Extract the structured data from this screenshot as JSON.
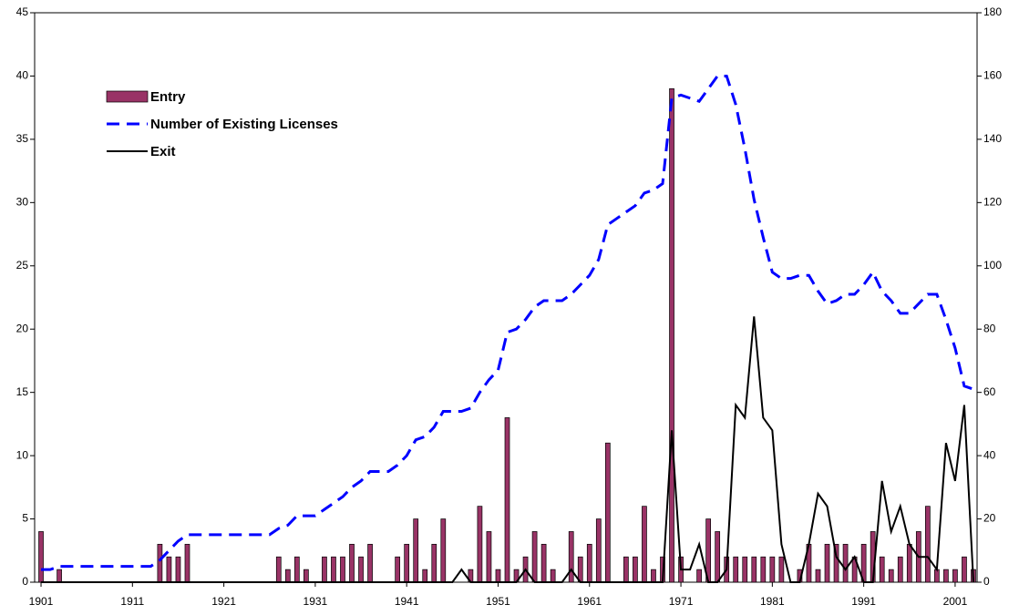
{
  "chart_data": {
    "type": "bar",
    "x": [
      1901,
      1902,
      1903,
      1904,
      1905,
      1906,
      1907,
      1908,
      1909,
      1910,
      1911,
      1912,
      1913,
      1914,
      1915,
      1916,
      1917,
      1918,
      1919,
      1920,
      1921,
      1922,
      1923,
      1924,
      1925,
      1926,
      1927,
      1928,
      1929,
      1930,
      1931,
      1932,
      1933,
      1934,
      1935,
      1936,
      1937,
      1938,
      1939,
      1940,
      1941,
      1942,
      1943,
      1944,
      1945,
      1946,
      1947,
      1948,
      1949,
      1950,
      1951,
      1952,
      1953,
      1954,
      1955,
      1956,
      1957,
      1958,
      1959,
      1960,
      1961,
      1962,
      1963,
      1964,
      1965,
      1966,
      1967,
      1968,
      1969,
      1970,
      1971,
      1972,
      1973,
      1974,
      1975,
      1976,
      1977,
      1978,
      1979,
      1980,
      1981,
      1982,
      1983,
      1984,
      1985,
      1986,
      1987,
      1988,
      1989,
      1990,
      1991,
      1992,
      1993,
      1994,
      1995,
      1996,
      1997,
      1998,
      1999,
      2000,
      2001,
      2002,
      2003
    ],
    "series": [
      {
        "name": "Entry",
        "type": "bar",
        "color": "#993366",
        "values": [
          4,
          0,
          1,
          0,
          0,
          0,
          0,
          0,
          0,
          0,
          0,
          0,
          0,
          3,
          2,
          2,
          3,
          0,
          0,
          0,
          0,
          0,
          0,
          0,
          0,
          0,
          2,
          1,
          2,
          1,
          0,
          2,
          2,
          2,
          3,
          2,
          3,
          0,
          0,
          2,
          3,
          5,
          1,
          3,
          5,
          0,
          0,
          1,
          6,
          4,
          1,
          13,
          1,
          2,
          4,
          3,
          1,
          0,
          4,
          2,
          3,
          5,
          11,
          0,
          2,
          2,
          6,
          1,
          2,
          39,
          2,
          0,
          1,
          5,
          4,
          2,
          2,
          2,
          2,
          2,
          2,
          2,
          0,
          1,
          3,
          1,
          3,
          3,
          3,
          2,
          3,
          4,
          2,
          1,
          2,
          3,
          4,
          6,
          1,
          1,
          1,
          2,
          1
        ]
      },
      {
        "name": "Number of Existing Licenses",
        "type": "line",
        "style": "dashed",
        "axis": "y2",
        "color": "#0000ff",
        "values": [
          4,
          4,
          5,
          5,
          5,
          5,
          5,
          5,
          5,
          5,
          5,
          5,
          5,
          7,
          10,
          13,
          15,
          15,
          15,
          15,
          15,
          15,
          15,
          15,
          15,
          15,
          17,
          18,
          21,
          21,
          21,
          23,
          25,
          27,
          30,
          32,
          35,
          35,
          35,
          37,
          40,
          45,
          46,
          49,
          54,
          54,
          54,
          55,
          60,
          64,
          67,
          79,
          80,
          83,
          87,
          89,
          89,
          89,
          91,
          94,
          97,
          102,
          113,
          115,
          117,
          119,
          123,
          124,
          126,
          153,
          154,
          153,
          152,
          156,
          160,
          160,
          151,
          137,
          121,
          109,
          98,
          96,
          96,
          97,
          97,
          92,
          88,
          89,
          91,
          91,
          94,
          98,
          92,
          89,
          85,
          85,
          88,
          91,
          91,
          83,
          74,
          62,
          61
        ]
      },
      {
        "name": "Exit",
        "type": "line",
        "style": "solid",
        "color": "#000000",
        "values": [
          0,
          0,
          0,
          0,
          0,
          0,
          0,
          0,
          0,
          0,
          0,
          0,
          0,
          0,
          0,
          0,
          0,
          0,
          0,
          0,
          0,
          0,
          0,
          0,
          0,
          0,
          0,
          0,
          0,
          0,
          0,
          0,
          0,
          0,
          0,
          0,
          0,
          0,
          0,
          0,
          0,
          0,
          0,
          0,
          0,
          0,
          1,
          0,
          0,
          0,
          0,
          0,
          0,
          1,
          0,
          0,
          0,
          0,
          1,
          0,
          0,
          0,
          0,
          0,
          0,
          0,
          0,
          0,
          0,
          12,
          1,
          1,
          3,
          0,
          0,
          1,
          14,
          13,
          21,
          13,
          12,
          3,
          0,
          0,
          3,
          7,
          6,
          2,
          1,
          2,
          0,
          0,
          8,
          4,
          6,
          3,
          2,
          2,
          1,
          11,
          8,
          14,
          0
        ]
      }
    ],
    "xlim": [
      1900.3,
      2003.4
    ],
    "xticks": [
      1901,
      1911,
      1921,
      1931,
      1941,
      1951,
      1961,
      1971,
      1981,
      1991,
      2001
    ],
    "ylim": [
      0,
      45
    ],
    "yticks": [
      0,
      5,
      10,
      15,
      20,
      25,
      30,
      35,
      40,
      45
    ],
    "y2lim": [
      0,
      180
    ],
    "y2ticks": [
      0,
      20,
      40,
      60,
      80,
      100,
      120,
      140,
      160,
      180
    ],
    "legend": "upper left"
  }
}
